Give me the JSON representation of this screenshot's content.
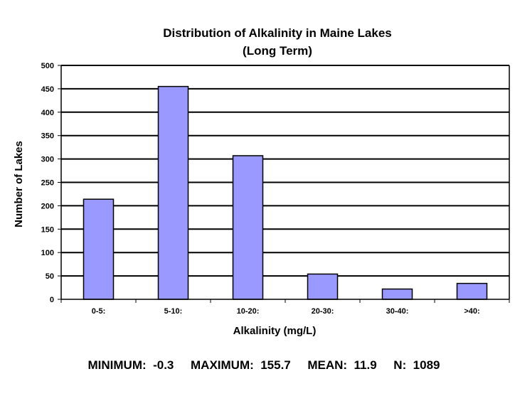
{
  "chart_data": {
    "type": "bar",
    "title": "Distribution of Alkalinity in Maine Lakes",
    "subtitle": "(Long Term)",
    "xlabel": "Alkalinity (mg/L)",
    "ylabel": "Number of Lakes",
    "categories": [
      "0-5:",
      "5-10:",
      "10-20:",
      "20-30:",
      "30-40:",
      ">40:"
    ],
    "values": [
      214,
      455,
      307,
      54,
      22,
      34
    ],
    "ylim": [
      0,
      500
    ],
    "yticks": [
      0,
      50,
      100,
      150,
      200,
      250,
      300,
      350,
      400,
      450,
      500
    ],
    "grid": true,
    "legend": "none",
    "colors": {
      "bar_fill": "#9999ff",
      "bar_stroke": "#000000",
      "grid": "#000000"
    }
  },
  "stats": {
    "text": "MINIMUM:  -0.3     MAXIMUM:  155.7     MEAN:  11.9     N:  1089"
  }
}
